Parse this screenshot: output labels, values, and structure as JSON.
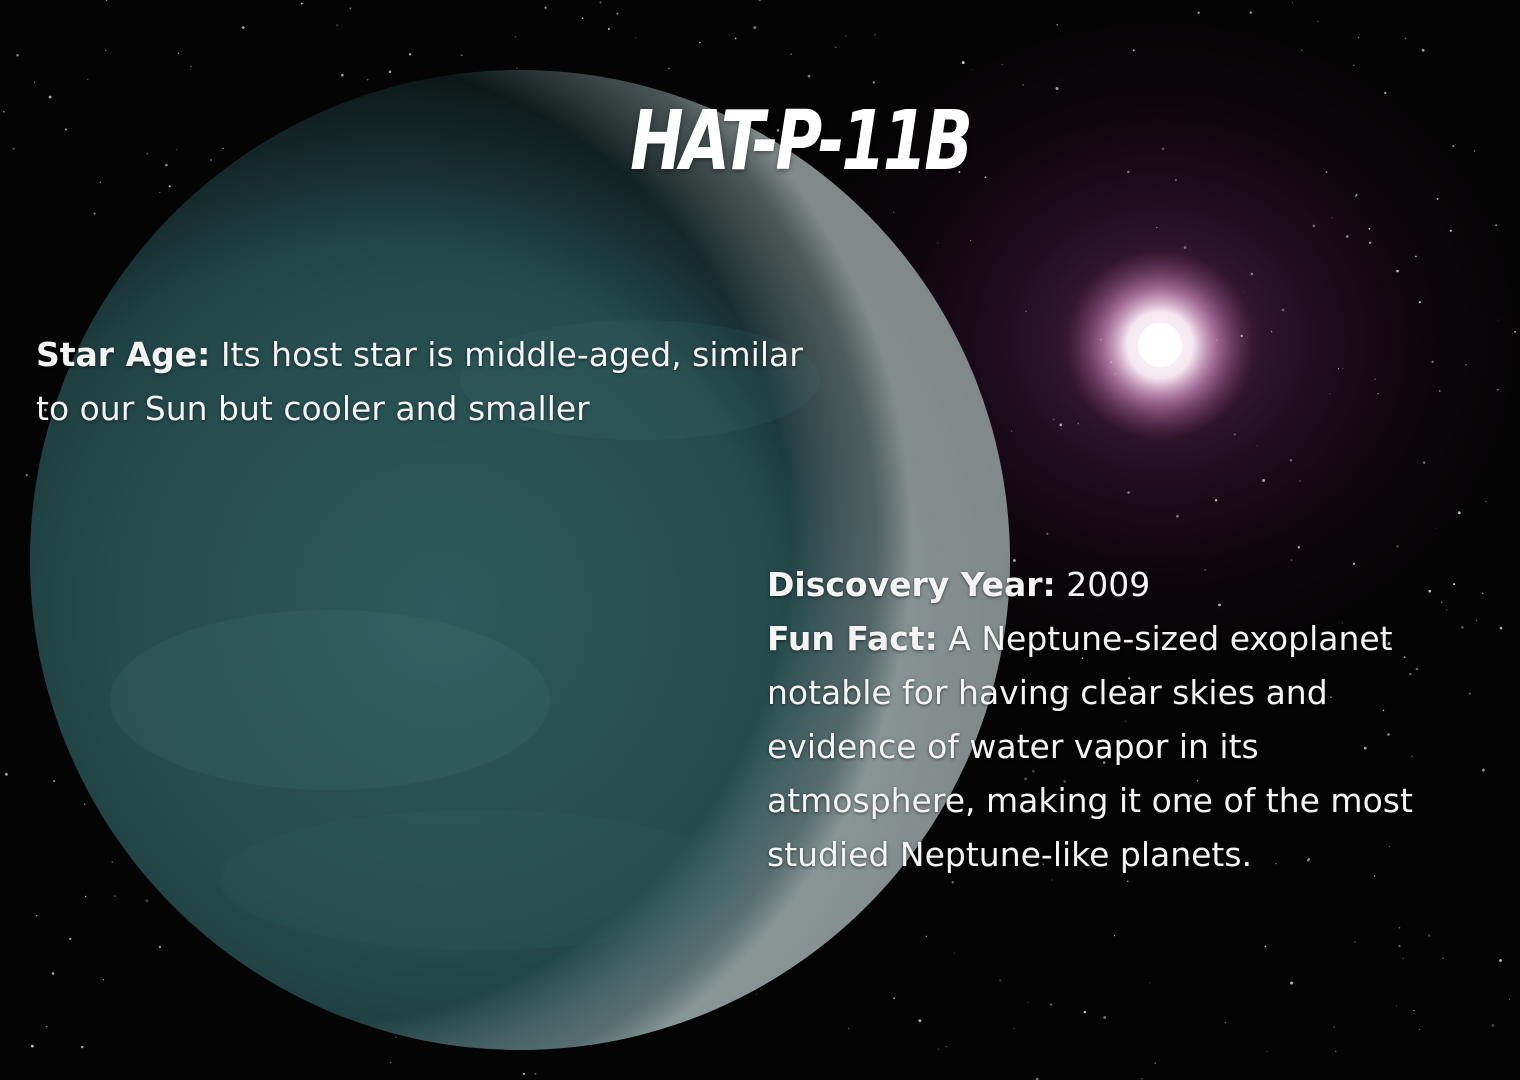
{
  "title": "HAT-P-11B",
  "star_age": {
    "label": "Star Age:",
    "text_line1": " Its host star is middle-aged, similar",
    "text_line2": "to our Sun but cooler and smaller"
  },
  "discovery": {
    "label": "Discovery Year:",
    "value": " 2009"
  },
  "fun_fact": {
    "label": "Fun Fact:",
    "line1": " A Neptune-sized exoplanet",
    "line2": "notable for having clear skies and",
    "line3": "evidence of water vapor in its",
    "line4": "atmosphere, making it one of the most",
    "line5": "studied Neptune-like planets."
  },
  "colors": {
    "background": "#040404",
    "planet": "#2f5a5a",
    "star_glow": "#b07aa8",
    "text": "#ffffff"
  }
}
